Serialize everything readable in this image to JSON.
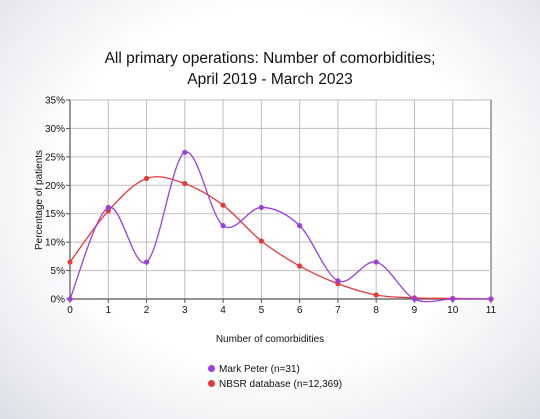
{
  "colors": {
    "series1": "#9b3fe0",
    "series2": "#e8383a",
    "grid": "#bfbfbf",
    "axis": "#555555"
  },
  "chart_data": {
    "type": "line",
    "title": "All primary operations: Number of comorbidities;",
    "subtitle": "April 2019 - March 2023",
    "xlabel": "Number of comorbidities",
    "ylabel": "Percentage of patients",
    "x": [
      0,
      1,
      2,
      3,
      4,
      5,
      6,
      7,
      8,
      9,
      10,
      11
    ],
    "xlim": [
      0,
      11
    ],
    "ylim": [
      0,
      35
    ],
    "yticks": [
      "0%",
      "5%",
      "10%",
      "15%",
      "20%",
      "25%",
      "30%",
      "35%"
    ],
    "xticks": [
      "0",
      "1",
      "2",
      "3",
      "4",
      "5",
      "6",
      "7",
      "8",
      "9",
      "10",
      "11"
    ],
    "grid": true,
    "legend_position": "bottom",
    "series": [
      {
        "name": "Mark Peter (n=31)",
        "color": "#9b3fe0",
        "values": [
          0,
          16.1,
          6.5,
          25.8,
          12.9,
          16.1,
          12.9,
          3.2,
          6.5,
          0,
          0,
          0
        ]
      },
      {
        "name": "NBSR database (n=12,369)",
        "color": "#e8383a",
        "values": [
          6.5,
          15.5,
          21.2,
          20.3,
          16.5,
          10.2,
          5.8,
          2.7,
          0.7,
          0.2,
          0.1,
          0
        ]
      }
    ]
  }
}
